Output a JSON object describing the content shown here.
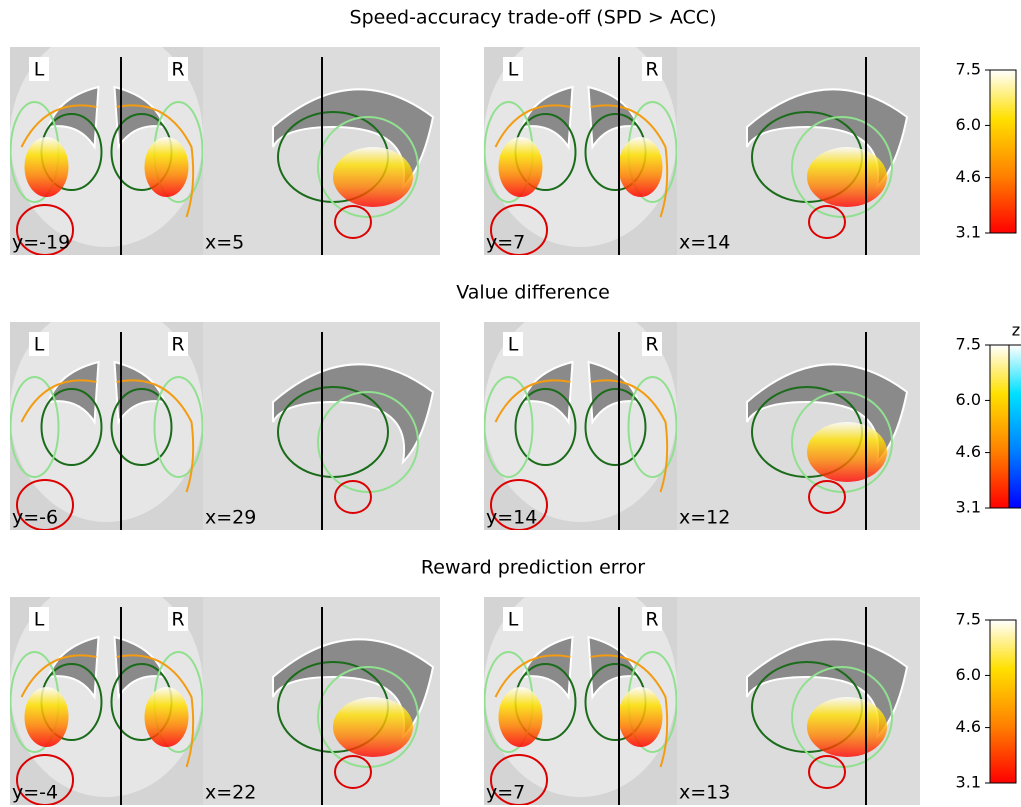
{
  "rows": [
    {
      "title": "Speed-accuracy trade-off (SPD > ACC)",
      "panels": [
        {
          "label": "y=-19",
          "left": "L",
          "right": "R"
        },
        {
          "label": "x=5"
        },
        {
          "label": "y=7",
          "left": "L",
          "right": "R"
        },
        {
          "label": "x=14"
        }
      ],
      "colorbar": {
        "ticks": [
          "7.5",
          "6.0",
          "4.6",
          "3.1"
        ]
      }
    },
    {
      "title": "Value difference",
      "panels": [
        {
          "label": "y=-6",
          "left": "L",
          "right": "R"
        },
        {
          "label": "x=29"
        },
        {
          "label": "y=14",
          "left": "L",
          "right": "R"
        },
        {
          "label": "x=12"
        }
      ],
      "colorbar": {
        "ticks": [
          "7.5",
          "6.0",
          "4.6",
          "3.1"
        ],
        "unit": "z"
      }
    },
    {
      "title": "Reward prediction error",
      "panels": [
        {
          "label": "y=-4",
          "left": "L",
          "right": "R"
        },
        {
          "label": "x=22"
        },
        {
          "label": "y=7",
          "left": "L",
          "right": "R"
        },
        {
          "label": "x=13"
        }
      ],
      "colorbar": {
        "ticks": [
          "7.5",
          "6.0",
          "4.6",
          "3.1"
        ]
      }
    }
  ]
}
